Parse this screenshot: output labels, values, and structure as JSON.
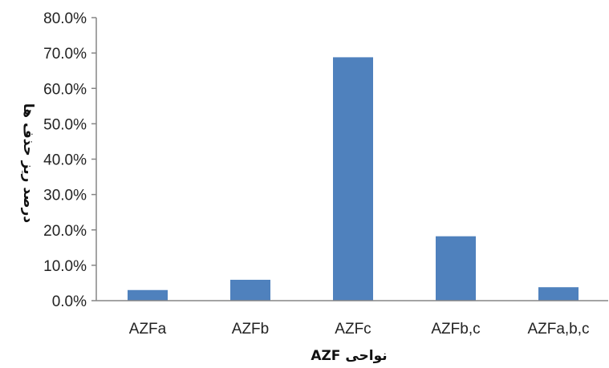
{
  "chart_data": {
    "type": "bar",
    "categories": [
      "AZFa",
      "AZFb",
      "AZFc",
      "AZFb,c",
      "AZFa,b,c"
    ],
    "values": [
      3.0,
      5.9,
      68.8,
      18.2,
      3.8
    ],
    "ylim": [
      0,
      80
    ],
    "ytick_labels": [
      "0.0%",
      "10.0%",
      "20.0%",
      "30.0%",
      "40.0%",
      "50.0%",
      "60.0%",
      "70.0%",
      "80.0%"
    ],
    "xlabel": "نواحی AZF",
    "ylabel": "درصد ریز حذف ها",
    "grid": false,
    "bar_color": "#4f81bd",
    "axis_color": "#868686"
  }
}
